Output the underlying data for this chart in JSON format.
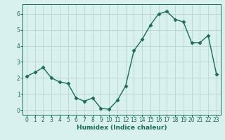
{
  "x": [
    0,
    1,
    2,
    3,
    4,
    5,
    6,
    7,
    8,
    9,
    10,
    11,
    12,
    13,
    14,
    15,
    16,
    17,
    18,
    19,
    20,
    21,
    22,
    23
  ],
  "y": [
    2.1,
    2.35,
    2.65,
    2.0,
    1.75,
    1.65,
    0.75,
    0.55,
    0.75,
    0.1,
    0.05,
    0.6,
    1.5,
    3.7,
    4.4,
    5.3,
    6.0,
    6.15,
    5.65,
    5.5,
    4.2,
    4.2,
    4.65,
    2.25
  ],
  "line_color": "#1a6b5a",
  "marker": "D",
  "markersize": 2.5,
  "linewidth": 1.0,
  "xlabel": "Humidex (Indice chaleur)",
  "bg_color": "#d8f0ee",
  "grid_color": "#c0d8d5",
  "xlim": [
    -0.5,
    23.5
  ],
  "ylim": [
    -0.3,
    6.6
  ],
  "yticks": [
    0,
    1,
    2,
    3,
    4,
    5,
    6
  ],
  "xticks": [
    0,
    1,
    2,
    3,
    4,
    5,
    6,
    7,
    8,
    9,
    10,
    11,
    12,
    13,
    14,
    15,
    16,
    17,
    18,
    19,
    20,
    21,
    22,
    23
  ],
  "xlabel_fontsize": 6.5,
  "tick_fontsize": 5.5,
  "axis_color": "#1a6b5a"
}
